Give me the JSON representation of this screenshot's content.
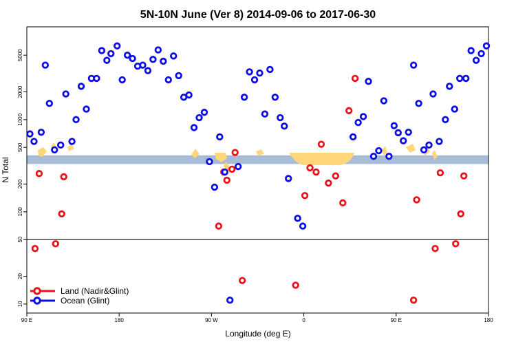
{
  "chart_data": {
    "type": "scatter",
    "title": "5N-10N June (Ver 8)   2014-09-06 to 2017-06-30",
    "xlabel": "Longitude (deg E)",
    "ylabel": "N Total",
    "x_ticks": [
      {
        "value": 90,
        "label": "90 E"
      },
      {
        "value": 180,
        "label": "180"
      },
      {
        "value": 270,
        "label": "90 W"
      },
      {
        "value": 360,
        "label": "0"
      },
      {
        "value": 450,
        "label": "90 E"
      },
      {
        "value": 540,
        "label": "180"
      }
    ],
    "xlim": [
      90,
      540
    ],
    "ylim": [
      9,
      9000
    ],
    "y_scale": "log",
    "y_ticks": [
      {
        "value": 10,
        "label": "10"
      },
      {
        "value": 20,
        "label": "20"
      },
      {
        "value": 50,
        "label": "50"
      },
      {
        "value": 100,
        "label": "100"
      },
      {
        "value": 200,
        "label": "200"
      },
      {
        "value": 500,
        "label": "500"
      },
      {
        "value": 1000,
        "label": "1000"
      },
      {
        "value": 2000,
        "label": "2000"
      },
      {
        "value": 5000,
        "label": "5000"
      }
    ],
    "reference_lines": [
      50
    ],
    "band": {
      "y_low": 330,
      "y_high": 410,
      "color": "#a8bcd8"
    },
    "land_color": "#ffd77a",
    "series": [
      {
        "name": "Land (Nadir&Glint)",
        "color": "#e8141a",
        "points": [
          [
            98,
            40
          ],
          [
            102,
            260
          ],
          [
            118,
            45
          ],
          [
            124,
            95
          ],
          [
            126,
            240
          ],
          [
            277,
            70
          ],
          [
            282,
            270
          ],
          [
            285,
            220
          ],
          [
            290,
            290
          ],
          [
            293,
            440
          ],
          [
            300,
            18
          ],
          [
            352,
            16
          ],
          [
            361,
            150
          ],
          [
            366,
            300
          ],
          [
            372,
            270
          ],
          [
            377,
            540
          ],
          [
            384,
            205
          ],
          [
            391,
            245
          ],
          [
            398,
            125
          ],
          [
            404,
            1250
          ],
          [
            410,
            2800
          ],
          [
            467,
            11
          ],
          [
            470,
            135
          ],
          [
            488,
            40
          ],
          [
            493,
            265
          ],
          [
            508,
            45
          ],
          [
            513,
            95
          ],
          [
            516,
            245
          ]
        ]
      },
      {
        "name": "Ocean (Glint)",
        "color": "#0d0ee6",
        "points": [
          [
            93,
            700
          ],
          [
            97,
            580
          ],
          [
            104,
            730
          ],
          [
            108,
            3900
          ],
          [
            112,
            1500
          ],
          [
            117,
            470
          ],
          [
            123,
            530
          ],
          [
            128,
            1900
          ],
          [
            134,
            580
          ],
          [
            138,
            1000
          ],
          [
            143,
            2300
          ],
          [
            148,
            1300
          ],
          [
            153,
            2800
          ],
          [
            158,
            2800
          ],
          [
            163,
            5600
          ],
          [
            168,
            4400
          ],
          [
            172,
            5200
          ],
          [
            178,
            6300
          ],
          [
            183,
            2700
          ],
          [
            188,
            5000
          ],
          [
            193,
            4600
          ],
          [
            198,
            3800
          ],
          [
            203,
            3900
          ],
          [
            208,
            3400
          ],
          [
            213,
            4500
          ],
          [
            218,
            5700
          ],
          [
            223,
            4300
          ],
          [
            228,
            2700
          ],
          [
            233,
            4900
          ],
          [
            238,
            3000
          ],
          [
            243,
            1750
          ],
          [
            248,
            1850
          ],
          [
            253,
            820
          ],
          [
            258,
            1050
          ],
          [
            263,
            1200
          ],
          [
            268,
            350
          ],
          [
            273,
            185
          ],
          [
            278,
            650
          ],
          [
            283,
            270
          ],
          [
            288,
            11
          ],
          [
            296,
            310
          ],
          [
            302,
            1750
          ],
          [
            307,
            3300
          ],
          [
            312,
            2700
          ],
          [
            317,
            3200
          ],
          [
            322,
            1150
          ],
          [
            327,
            3500
          ],
          [
            332,
            1750
          ],
          [
            337,
            1050
          ],
          [
            341,
            850
          ],
          [
            345,
            230
          ],
          [
            354,
            85
          ],
          [
            359,
            70
          ],
          [
            408,
            650
          ],
          [
            413,
            930
          ],
          [
            418,
            1080
          ],
          [
            423,
            2600
          ],
          [
            428,
            400
          ],
          [
            433,
            460
          ],
          [
            438,
            1600
          ],
          [
            443,
            400
          ],
          [
            448,
            860
          ],
          [
            452,
            720
          ],
          [
            457,
            590
          ],
          [
            462,
            730
          ],
          [
            467,
            3900
          ],
          [
            472,
            1500
          ],
          [
            477,
            470
          ],
          [
            482,
            530
          ],
          [
            486,
            1900
          ],
          [
            492,
            580
          ],
          [
            498,
            1000
          ],
          [
            502,
            2300
          ],
          [
            507,
            1300
          ],
          [
            512,
            2800
          ],
          [
            518,
            2800
          ],
          [
            523,
            5600
          ],
          [
            528,
            4400
          ],
          [
            533,
            5200
          ],
          [
            538,
            6300
          ]
        ]
      }
    ]
  }
}
